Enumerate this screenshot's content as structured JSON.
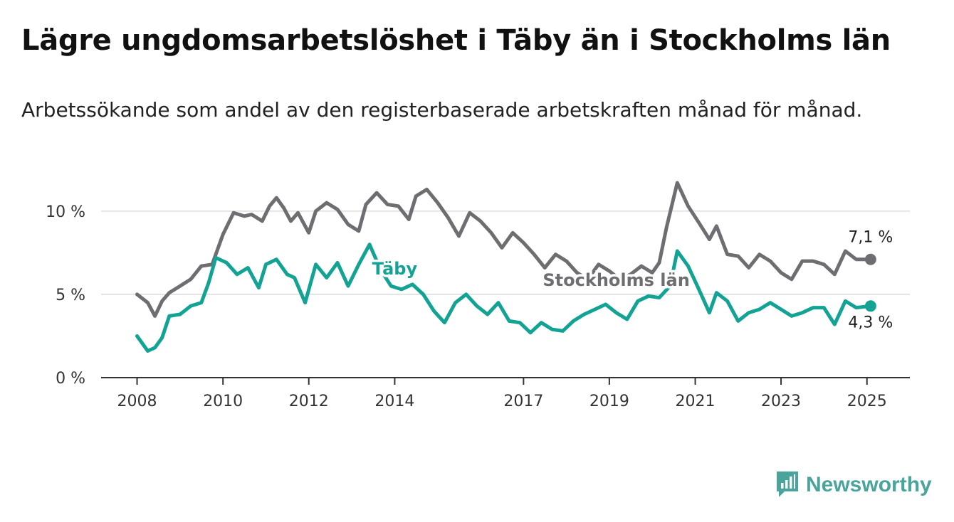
{
  "title": "Lägre ungdomsarbetslöshet i Täby än i Stockholms län",
  "subtitle": "Arbetssökande som andel av den registerbaserade arbetskraften månad för månad.",
  "brand": {
    "name": "Newsworthy",
    "icon": "newsworthy-logo-icon",
    "color": "#49a59c"
  },
  "chart_data": {
    "type": "line",
    "title": "Lägre ungdomsarbetslöshet i Täby än i Stockholms län",
    "subtitle": "Arbetssökande som andel av den registerbaserade arbetskraften månad för månad.",
    "xlabel": "",
    "ylabel": "",
    "xlim": [
      "2007-03-01",
      "2026-01-01"
    ],
    "ylim": [
      0,
      12
    ],
    "x_ticks": [
      "2008",
      "2010",
      "2012",
      "2014",
      "2017",
      "2019",
      "2021",
      "2023",
      "2025"
    ],
    "y_ticks": [
      {
        "value": 0,
        "label": "0 %"
      },
      {
        "value": 5,
        "label": "5 %"
      },
      {
        "value": 10,
        "label": "10 %"
      }
    ],
    "grid": "horizontal",
    "series": [
      {
        "name": "Stockholms län",
        "color": "#6e6e72",
        "end_label": "7,1 %",
        "points": [
          [
            "2008-01",
            5.0
          ],
          [
            "2008-04",
            4.5
          ],
          [
            "2008-06",
            3.7
          ],
          [
            "2008-08",
            4.6
          ],
          [
            "2008-10",
            5.1
          ],
          [
            "2009-01",
            5.5
          ],
          [
            "2009-04",
            5.9
          ],
          [
            "2009-07",
            6.7
          ],
          [
            "2009-10",
            6.8
          ],
          [
            "2010-01",
            8.6
          ],
          [
            "2010-04",
            9.9
          ],
          [
            "2010-07",
            9.7
          ],
          [
            "2010-09",
            9.8
          ],
          [
            "2010-12",
            9.4
          ],
          [
            "2011-02",
            10.3
          ],
          [
            "2011-04",
            10.8
          ],
          [
            "2011-06",
            10.2
          ],
          [
            "2011-08",
            9.4
          ],
          [
            "2011-10",
            9.9
          ],
          [
            "2012-01",
            8.7
          ],
          [
            "2012-03",
            10.0
          ],
          [
            "2012-06",
            10.5
          ],
          [
            "2012-09",
            10.1
          ],
          [
            "2012-12",
            9.2
          ],
          [
            "2013-03",
            8.8
          ],
          [
            "2013-05",
            10.4
          ],
          [
            "2013-08",
            11.1
          ],
          [
            "2013-11",
            10.4
          ],
          [
            "2014-02",
            10.3
          ],
          [
            "2014-05",
            9.5
          ],
          [
            "2014-07",
            10.9
          ],
          [
            "2014-10",
            11.3
          ],
          [
            "2015-01",
            10.5
          ],
          [
            "2015-04",
            9.6
          ],
          [
            "2015-07",
            8.5
          ],
          [
            "2015-10",
            9.9
          ],
          [
            "2016-01",
            9.4
          ],
          [
            "2016-04",
            8.7
          ],
          [
            "2016-07",
            7.8
          ],
          [
            "2016-10",
            8.7
          ],
          [
            "2017-01",
            8.1
          ],
          [
            "2017-04",
            7.4
          ],
          [
            "2017-07",
            6.6
          ],
          [
            "2017-10",
            7.4
          ],
          [
            "2018-01",
            7.0
          ],
          [
            "2018-04",
            6.3
          ],
          [
            "2018-07",
            5.9
          ],
          [
            "2018-10",
            6.8
          ],
          [
            "2019-01",
            6.4
          ],
          [
            "2019-04",
            5.9
          ],
          [
            "2019-07",
            6.2
          ],
          [
            "2019-10",
            6.7
          ],
          [
            "2020-01",
            6.3
          ],
          [
            "2020-03",
            6.9
          ],
          [
            "2020-05",
            9.0
          ],
          [
            "2020-08",
            11.7
          ],
          [
            "2020-11",
            10.3
          ],
          [
            "2021-02",
            9.3
          ],
          [
            "2021-05",
            8.3
          ],
          [
            "2021-07",
            9.1
          ],
          [
            "2021-10",
            7.4
          ],
          [
            "2022-01",
            7.3
          ],
          [
            "2022-04",
            6.6
          ],
          [
            "2022-07",
            7.4
          ],
          [
            "2022-10",
            7.0
          ],
          [
            "2023-01",
            6.3
          ],
          [
            "2023-04",
            5.9
          ],
          [
            "2023-07",
            7.0
          ],
          [
            "2023-10",
            7.0
          ],
          [
            "2024-01",
            6.8
          ],
          [
            "2024-04",
            6.2
          ],
          [
            "2024-07",
            7.6
          ],
          [
            "2024-10",
            7.1
          ],
          [
            "2025-02",
            7.1
          ]
        ]
      },
      {
        "name": "Täby",
        "color": "#12a394",
        "end_label": "4,3 %",
        "points": [
          [
            "2008-01",
            2.5
          ],
          [
            "2008-04",
            1.6
          ],
          [
            "2008-06",
            1.8
          ],
          [
            "2008-08",
            2.4
          ],
          [
            "2008-10",
            3.7
          ],
          [
            "2009-01",
            3.8
          ],
          [
            "2009-04",
            4.3
          ],
          [
            "2009-07",
            4.5
          ],
          [
            "2009-09",
            5.7
          ],
          [
            "2009-11",
            7.2
          ],
          [
            "2010-02",
            6.9
          ],
          [
            "2010-05",
            6.2
          ],
          [
            "2010-08",
            6.6
          ],
          [
            "2010-11",
            5.4
          ],
          [
            "2011-01",
            6.8
          ],
          [
            "2011-04",
            7.1
          ],
          [
            "2011-07",
            6.2
          ],
          [
            "2011-09",
            6.0
          ],
          [
            "2011-12",
            4.5
          ],
          [
            "2012-03",
            6.8
          ],
          [
            "2012-06",
            6.0
          ],
          [
            "2012-09",
            6.9
          ],
          [
            "2012-12",
            5.5
          ],
          [
            "2013-03",
            6.8
          ],
          [
            "2013-06",
            8.0
          ],
          [
            "2013-09",
            6.5
          ],
          [
            "2013-12",
            5.5
          ],
          [
            "2014-03",
            5.3
          ],
          [
            "2014-06",
            5.6
          ],
          [
            "2014-09",
            5.0
          ],
          [
            "2014-12",
            4.0
          ],
          [
            "2015-03",
            3.3
          ],
          [
            "2015-06",
            4.5
          ],
          [
            "2015-09",
            5.0
          ],
          [
            "2015-12",
            4.3
          ],
          [
            "2016-03",
            3.8
          ],
          [
            "2016-06",
            4.5
          ],
          [
            "2016-09",
            3.4
          ],
          [
            "2016-12",
            3.3
          ],
          [
            "2017-03",
            2.7
          ],
          [
            "2017-06",
            3.3
          ],
          [
            "2017-09",
            2.9
          ],
          [
            "2017-12",
            2.8
          ],
          [
            "2018-03",
            3.4
          ],
          [
            "2018-06",
            3.8
          ],
          [
            "2018-09",
            4.1
          ],
          [
            "2018-12",
            4.4
          ],
          [
            "2019-03",
            3.9
          ],
          [
            "2019-06",
            3.5
          ],
          [
            "2019-09",
            4.6
          ],
          [
            "2019-12",
            4.9
          ],
          [
            "2020-03",
            4.8
          ],
          [
            "2020-06",
            5.5
          ],
          [
            "2020-08",
            7.6
          ],
          [
            "2020-11",
            6.7
          ],
          [
            "2021-02",
            5.3
          ],
          [
            "2021-05",
            3.9
          ],
          [
            "2021-07",
            5.1
          ],
          [
            "2021-10",
            4.6
          ],
          [
            "2022-01",
            3.4
          ],
          [
            "2022-04",
            3.9
          ],
          [
            "2022-07",
            4.1
          ],
          [
            "2022-10",
            4.5
          ],
          [
            "2023-01",
            4.1
          ],
          [
            "2023-04",
            3.7
          ],
          [
            "2023-07",
            3.9
          ],
          [
            "2023-10",
            4.2
          ],
          [
            "2024-01",
            4.2
          ],
          [
            "2024-04",
            3.2
          ],
          [
            "2024-07",
            4.6
          ],
          [
            "2024-10",
            4.2
          ],
          [
            "2025-02",
            4.3
          ]
        ]
      }
    ]
  }
}
